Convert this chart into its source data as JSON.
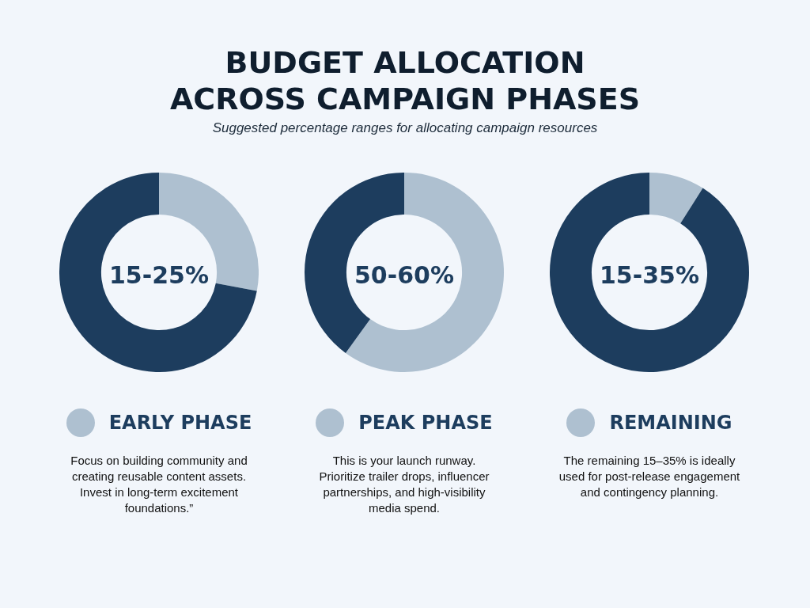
{
  "chart_data": [
    {
      "type": "donut",
      "title": "BUDGET ALLOCATION\nACROSS CAMPAIGN PHASES",
      "subtitle": "Suggested percentage ranges for allocating campaign resources",
      "categories": [
        "EARLY PHASE",
        null
      ],
      "values": [
        28,
        72
      ],
      "colors": [
        "#aec0d0",
        "#1d3d5e"
      ],
      "legend": "bottom",
      "annotations": [
        "15-25%",
        "Focus on building community and creating reusable content assets. Invest in long-term excitement foundations.”"
      ]
    },
    {
      "type": "donut",
      "categories": [
        "PEAK PHASE",
        null
      ],
      "values": [
        60,
        40
      ],
      "colors": [
        "#aec0d0",
        "#1d3d5e"
      ],
      "legend": "bottom",
      "annotations": [
        "50-60%",
        "This is your launch runway. Prioritize trailer drops, influencer partnerships, and high-visibility media spend."
      ]
    },
    {
      "type": "donut",
      "categories": [
        "REMAINING",
        null
      ],
      "values": [
        9,
        91
      ],
      "colors": [
        "#aec0d0",
        "#1d3d5e"
      ],
      "legend": "bottom",
      "annotations": [
        "15-35%",
        "The remaining 15–35% is ideally used for post-release engagement and contingency planning."
      ]
    }
  ]
}
